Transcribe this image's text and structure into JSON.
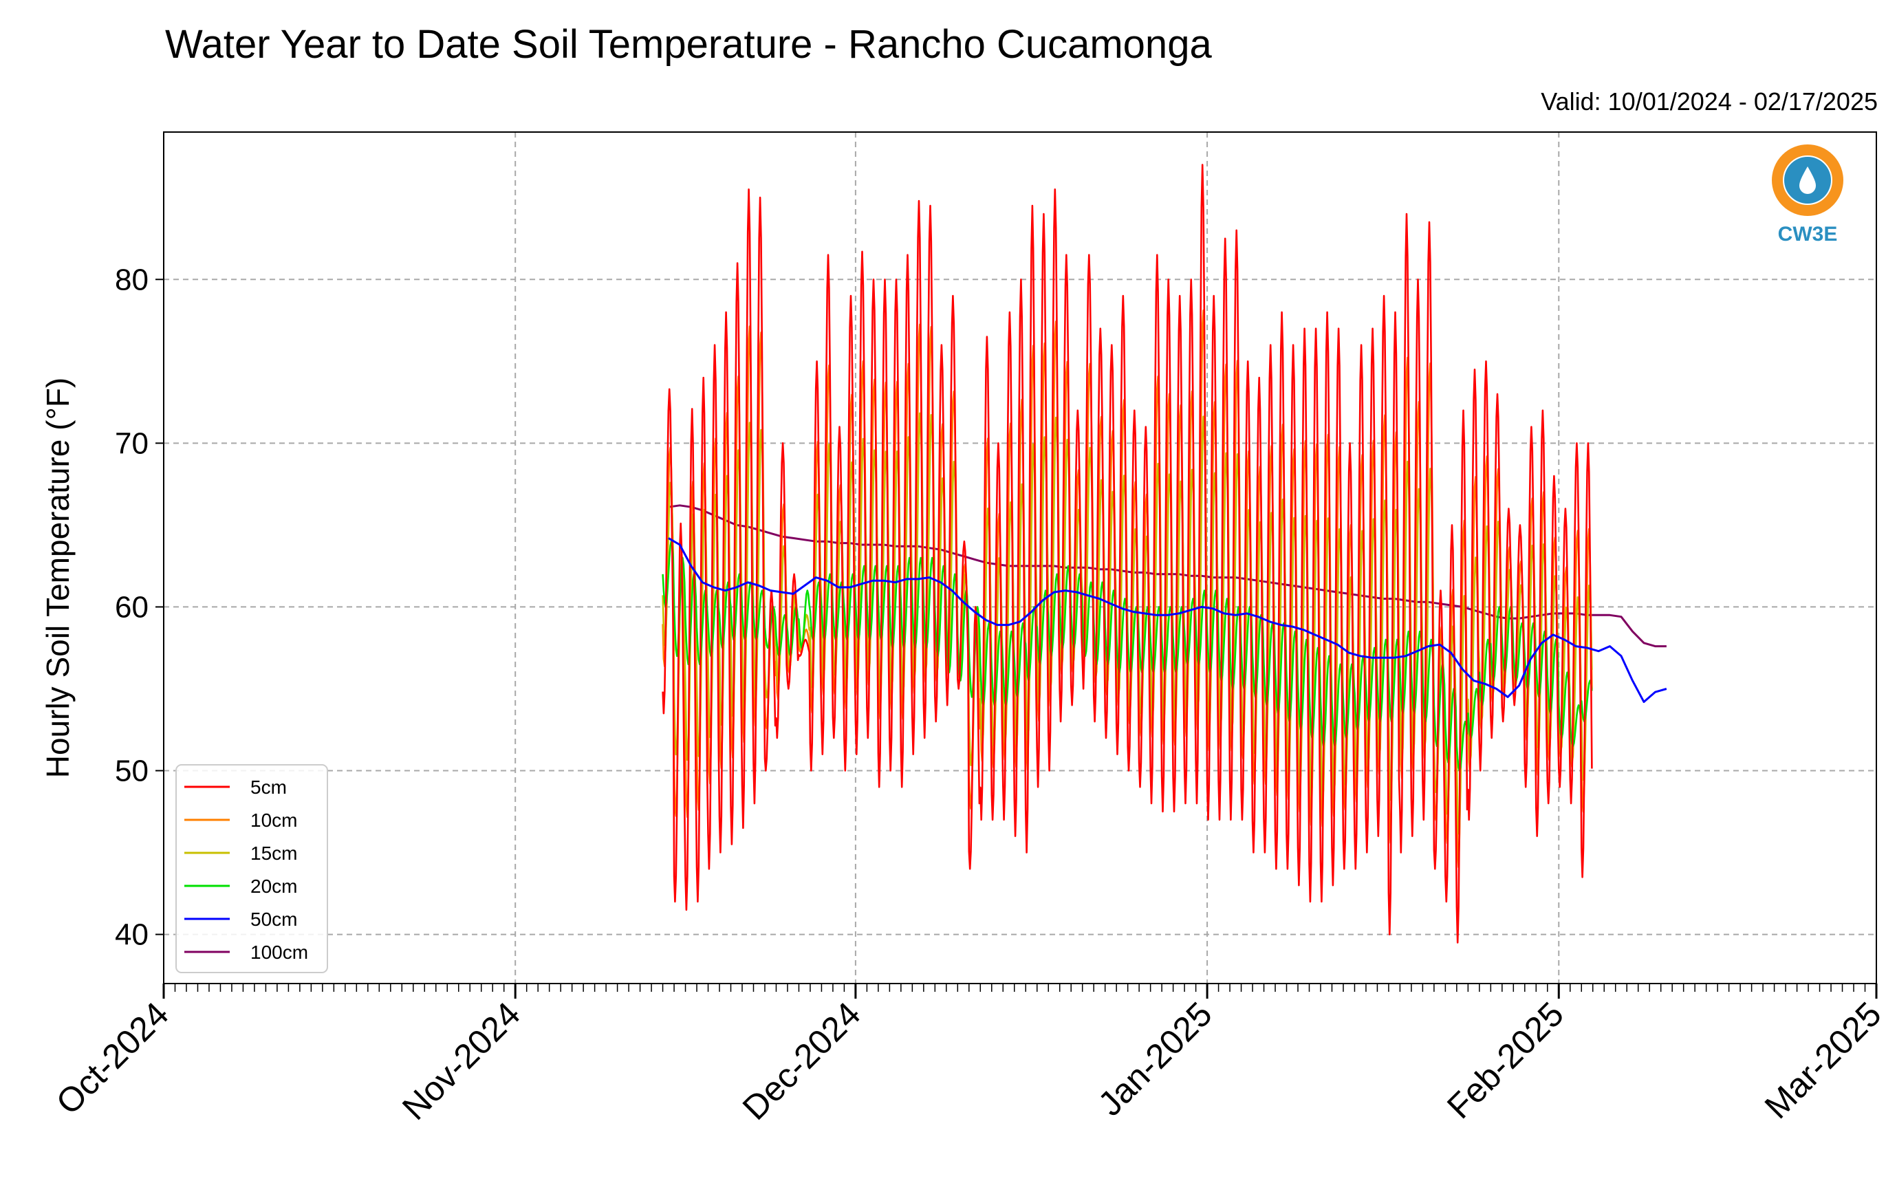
{
  "chart_data": {
    "type": "line",
    "title": "Water Year to Date Soil Temperature - Rancho Cucamonga",
    "valid": "Valid: 10/01/2024 - 02/17/2025",
    "ylabel": "Hourly Soil Temperature (°F)",
    "xlabel": "",
    "ylim": [
      37,
      89
    ],
    "xlim": [
      "2024-10-01",
      "2025-03-01"
    ],
    "yticks": [
      40,
      50,
      60,
      70,
      80
    ],
    "xticks": [
      {
        "date": "2024-10-01",
        "label": "Oct-2024"
      },
      {
        "date": "2024-11-01",
        "label": "Nov-2024"
      },
      {
        "date": "2024-12-01",
        "label": "Dec-2024"
      },
      {
        "date": "2025-01-01",
        "label": "Jan-2025"
      },
      {
        "date": "2025-02-01",
        "label": "Feb-2025"
      },
      {
        "date": "2025-03-01",
        "label": "Mar-2025"
      }
    ],
    "grid": true,
    "legend_position": "lower-left",
    "data_start": "2024-11-14",
    "series": [
      {
        "name": "5cm",
        "color": "#ff0000",
        "daily_max": [
          73.3,
          65.1,
          72.1,
          74.0,
          76.0,
          78.0,
          81.0,
          85.5,
          85.0,
          61.0,
          70.0,
          62.0,
          58.0,
          75.0,
          81.5,
          71.0,
          79.0,
          81.7,
          80.0,
          80.0,
          80.0,
          81.5,
          84.8,
          84.5,
          76.0,
          79.0,
          64.0,
          60.0,
          76.5,
          70.0,
          78.0,
          80.0,
          84.5,
          84.0,
          85.5,
          81.5,
          72.0,
          81.5,
          77.0,
          76.0,
          79.0,
          72.0,
          71.0,
          81.5,
          80.0,
          79.0,
          80.0,
          87.0,
          79.0,
          82.5,
          83.0,
          75.0,
          74.0,
          76.0,
          78.0,
          76.0,
          77.0,
          77.0,
          78.0,
          77.0,
          70.0,
          76.0,
          77.0,
          79.0,
          78.0,
          84.0,
          80.0,
          83.5,
          61.0,
          65.0,
          72.0,
          74.5,
          75.0,
          73.0,
          66.0,
          65.0,
          71.0,
          72.0,
          68.0,
          66.0,
          70.0,
          70.0
        ],
        "daily_min": [
          53.5,
          42.0,
          41.5,
          42.0,
          44.0,
          45.0,
          45.5,
          46.5,
          48.0,
          50.0,
          52.0,
          55.0,
          57.0,
          50.0,
          51.0,
          52.0,
          50.0,
          51.0,
          52.0,
          49.0,
          50.0,
          49.0,
          51.0,
          52.0,
          53.0,
          54.0,
          55.0,
          44.0,
          47.0,
          47.0,
          47.0,
          46.0,
          45.0,
          49.0,
          50.0,
          53.0,
          54.0,
          55.0,
          53.0,
          52.0,
          51.0,
          50.0,
          49.0,
          48.0,
          47.5,
          47.5,
          48.0,
          48.0,
          47.0,
          47.0,
          47.0,
          47.0,
          45.0,
          45.0,
          44.0,
          44.0,
          43.0,
          42.0,
          42.0,
          43.0,
          44.0,
          44.0,
          45.0,
          46.0,
          40.0,
          45.0,
          46.0,
          47.0,
          44.0,
          42.0,
          39.5,
          47.0,
          50.0,
          52.0,
          53.0,
          54.0,
          49.0,
          46.0,
          48.0,
          49.0,
          48.0,
          43.5
        ]
      },
      {
        "name": "10cm",
        "color": "#ff8000",
        "daily_max": [],
        "daily_min": []
      },
      {
        "name": "15cm",
        "color": "#c8c000",
        "daily_max": [],
        "daily_min": []
      },
      {
        "name": "20cm",
        "color": "#00e000",
        "daily_max": [
          64.0,
          63.0,
          62.0,
          61.0,
          61.0,
          61.5,
          62.0,
          61.5,
          61.0,
          60.0,
          59.5,
          60.0,
          61.0,
          61.5,
          62.0,
          61.5,
          62.0,
          62.5,
          62.5,
          62.5,
          62.5,
          63.0,
          63.0,
          63.0,
          62.5,
          62.0,
          61.0,
          60.0,
          59.0,
          58.5,
          58.5,
          59.0,
          60.0,
          61.0,
          62.0,
          62.5,
          62.0,
          61.5,
          61.5,
          61.0,
          60.5,
          60.0,
          60.0,
          60.0,
          60.0,
          60.0,
          60.5,
          61.0,
          61.0,
          60.5,
          60.0,
          60.0,
          59.5,
          59.0,
          59.0,
          58.5,
          58.0,
          57.5,
          57.0,
          56.5,
          56.5,
          57.0,
          57.5,
          58.0,
          58.0,
          58.5,
          58.5,
          58.0,
          56.5,
          55.0,
          53.0,
          55.0,
          58.0,
          60.0,
          60.0,
          59.0,
          59.0,
          58.5,
          58.0,
          56.0,
          54.0,
          55.5
        ],
        "daily_min": [
          60.0,
          57.0,
          56.5,
          56.5,
          57.0,
          57.5,
          58.0,
          58.0,
          58.0,
          57.5,
          57.0,
          57.0,
          57.5,
          58.0,
          58.0,
          58.0,
          58.0,
          58.0,
          58.0,
          58.0,
          57.5,
          57.5,
          57.5,
          57.5,
          57.0,
          56.0,
          55.5,
          54.5,
          54.0,
          54.0,
          54.0,
          54.5,
          55.5,
          56.5,
          57.0,
          57.5,
          57.5,
          57.0,
          56.5,
          56.5,
          56.0,
          56.0,
          56.0,
          56.0,
          56.0,
          56.0,
          56.5,
          56.5,
          56.0,
          55.5,
          55.0,
          55.0,
          54.5,
          54.0,
          53.5,
          53.0,
          52.5,
          52.0,
          51.5,
          51.5,
          52.0,
          52.5,
          53.0,
          53.0,
          53.0,
          53.5,
          53.5,
          53.0,
          51.5,
          50.5,
          50.0,
          52.0,
          54.0,
          55.5,
          56.0,
          55.5,
          55.0,
          54.5,
          53.5,
          52.0,
          51.5,
          53.0
        ]
      },
      {
        "name": "50cm",
        "color": "#0000ff",
        "daily_mean": [
          64.2,
          63.8,
          62.5,
          61.5,
          61.2,
          61.0,
          61.2,
          61.5,
          61.3,
          61.0,
          60.9,
          60.8,
          61.3,
          61.8,
          61.6,
          61.2,
          61.2,
          61.4,
          61.6,
          61.6,
          61.5,
          61.7,
          61.7,
          61.8,
          61.5,
          61.0,
          60.3,
          59.7,
          59.2,
          58.9,
          58.9,
          59.1,
          59.7,
          60.4,
          60.9,
          61.0,
          60.9,
          60.7,
          60.5,
          60.2,
          59.9,
          59.7,
          59.6,
          59.5,
          59.5,
          59.6,
          59.8,
          60.0,
          59.9,
          59.6,
          59.5,
          59.6,
          59.4,
          59.1,
          58.9,
          58.8,
          58.6,
          58.3,
          58.0,
          57.7,
          57.2,
          57.0,
          56.9,
          56.9,
          56.9,
          57.0,
          57.3,
          57.6,
          57.7,
          57.2,
          56.2,
          55.5,
          55.3,
          55.0,
          54.5,
          55.2,
          56.8,
          57.8,
          58.3,
          58.0,
          57.6,
          57.5,
          57.3,
          57.6,
          57.0,
          55.5,
          54.2,
          54.8,
          55.0
        ]
      },
      {
        "name": "100cm",
        "color": "#800060",
        "daily_mean": [
          66.1,
          66.2,
          66.1,
          65.9,
          65.6,
          65.3,
          65.0,
          64.9,
          64.7,
          64.5,
          64.3,
          64.2,
          64.1,
          64.0,
          64.0,
          63.9,
          63.9,
          63.8,
          63.8,
          63.8,
          63.7,
          63.7,
          63.7,
          63.6,
          63.5,
          63.3,
          63.1,
          62.9,
          62.7,
          62.6,
          62.5,
          62.5,
          62.5,
          62.5,
          62.5,
          62.4,
          62.4,
          62.4,
          62.3,
          62.3,
          62.2,
          62.1,
          62.1,
          62.0,
          62.0,
          62.0,
          61.9,
          61.9,
          61.8,
          61.8,
          61.8,
          61.7,
          61.6,
          61.5,
          61.4,
          61.3,
          61.2,
          61.1,
          61.0,
          60.9,
          60.8,
          60.7,
          60.6,
          60.5,
          60.5,
          60.4,
          60.3,
          60.3,
          60.2,
          60.1,
          60.0,
          59.8,
          59.6,
          59.4,
          59.3,
          59.3,
          59.4,
          59.5,
          59.6,
          59.6,
          59.6,
          59.5,
          59.5,
          59.5,
          59.4,
          58.5,
          57.8,
          57.6,
          57.6
        ]
      }
    ]
  },
  "logo": {
    "text": "CW3E",
    "color": "#2a8fc1",
    "accent": "#f7941d"
  }
}
